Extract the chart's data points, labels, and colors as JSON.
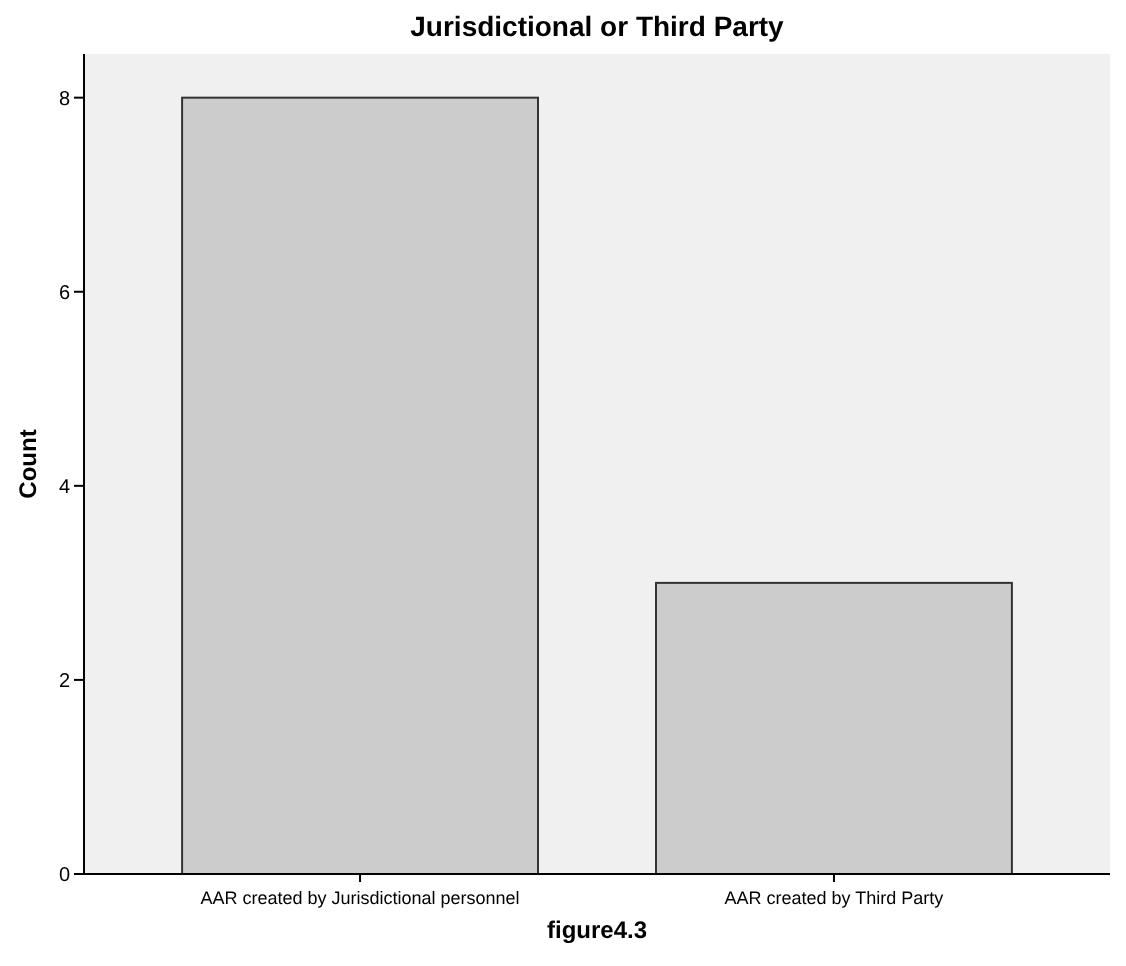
{
  "chart_data": {
    "type": "bar",
    "title": "Jurisdictional or Third Party",
    "xlabel": "figure4.3",
    "ylabel": "Count",
    "categories": [
      "AAR created by Jurisdictional personnel",
      "AAR created by Third Party"
    ],
    "values": [
      8,
      3
    ],
    "color": "#cccccc",
    "ylim": [
      0,
      8.45
    ],
    "yticks": [
      0,
      2,
      4,
      6,
      8
    ],
    "grid": false
  }
}
